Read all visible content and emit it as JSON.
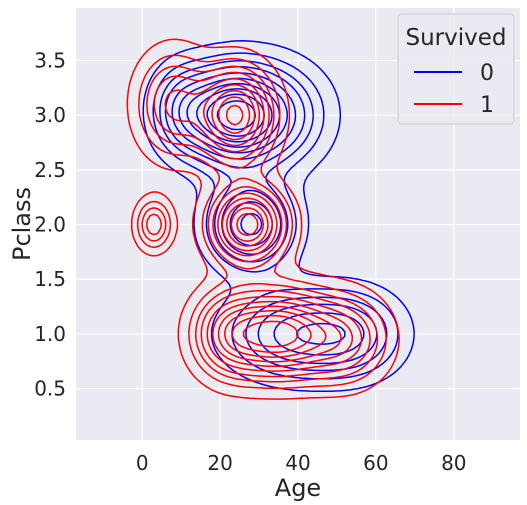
{
  "chart_data": {
    "type": "kde-contour",
    "xlabel": "Age",
    "ylabel": "Pclass",
    "xlim": [
      -17,
      97
    ],
    "ylim": [
      0.03,
      3.98
    ],
    "xticks": [
      "0",
      "20",
      "40",
      "60",
      "80"
    ],
    "xtick_values": [
      0,
      20,
      40,
      60,
      80
    ],
    "yticks": [
      "0.5",
      "1.0",
      "1.5",
      "2.0",
      "2.5",
      "3.0",
      "3.5"
    ],
    "ytick_values": [
      0.5,
      1.0,
      1.5,
      2.0,
      2.5,
      3.0,
      3.5
    ],
    "grid": true,
    "background": "#eaeaf2",
    "legend": {
      "title": "Survived",
      "placement": "top-right",
      "entries": [
        {
          "label": "0",
          "color": "#0000ff"
        },
        {
          "label": "1",
          "color": "#ff0000"
        }
      ]
    },
    "series": [
      {
        "label": "0",
        "color": "#0000ff",
        "peaks": [
          {
            "x": 22,
            "y": 3.0,
            "sx": 8,
            "sy": 0.28,
            "w": 1.0
          },
          {
            "x": 33,
            "y": 3.0,
            "sx": 9,
            "sy": 0.3,
            "w": 0.55
          },
          {
            "x": 10,
            "y": 3.05,
            "sx": 5,
            "sy": 0.25,
            "w": 0.35
          },
          {
            "x": 28,
            "y": 2.0,
            "sx": 7,
            "sy": 0.25,
            "w": 0.7
          },
          {
            "x": 40,
            "y": 1.0,
            "sx": 11,
            "sy": 0.25,
            "w": 0.6
          },
          {
            "x": 55,
            "y": 1.0,
            "sx": 8,
            "sy": 0.25,
            "w": 0.35
          }
        ]
      },
      {
        "label": "1",
        "color": "#ff0000",
        "peaks": [
          {
            "x": 24,
            "y": 3.0,
            "sx": 6,
            "sy": 0.27,
            "w": 0.8
          },
          {
            "x": 8,
            "y": 3.1,
            "sx": 6,
            "sy": 0.3,
            "w": 0.4
          },
          {
            "x": 27,
            "y": 2.0,
            "sx": 6,
            "sy": 0.22,
            "w": 0.85
          },
          {
            "x": 3,
            "y": 2.0,
            "sx": 3,
            "sy": 0.15,
            "w": 0.35
          },
          {
            "x": 35,
            "y": 1.0,
            "sx": 9,
            "sy": 0.25,
            "w": 0.9
          },
          {
            "x": 22,
            "y": 1.0,
            "sx": 6,
            "sy": 0.25,
            "w": 0.4
          },
          {
            "x": 52,
            "y": 0.95,
            "sx": 7,
            "sy": 0.25,
            "w": 0.4
          }
        ]
      }
    ],
    "levels": [
      0.06,
      0.14,
      0.22,
      0.3,
      0.4,
      0.5,
      0.6,
      0.7,
      0.8,
      0.9
    ]
  }
}
